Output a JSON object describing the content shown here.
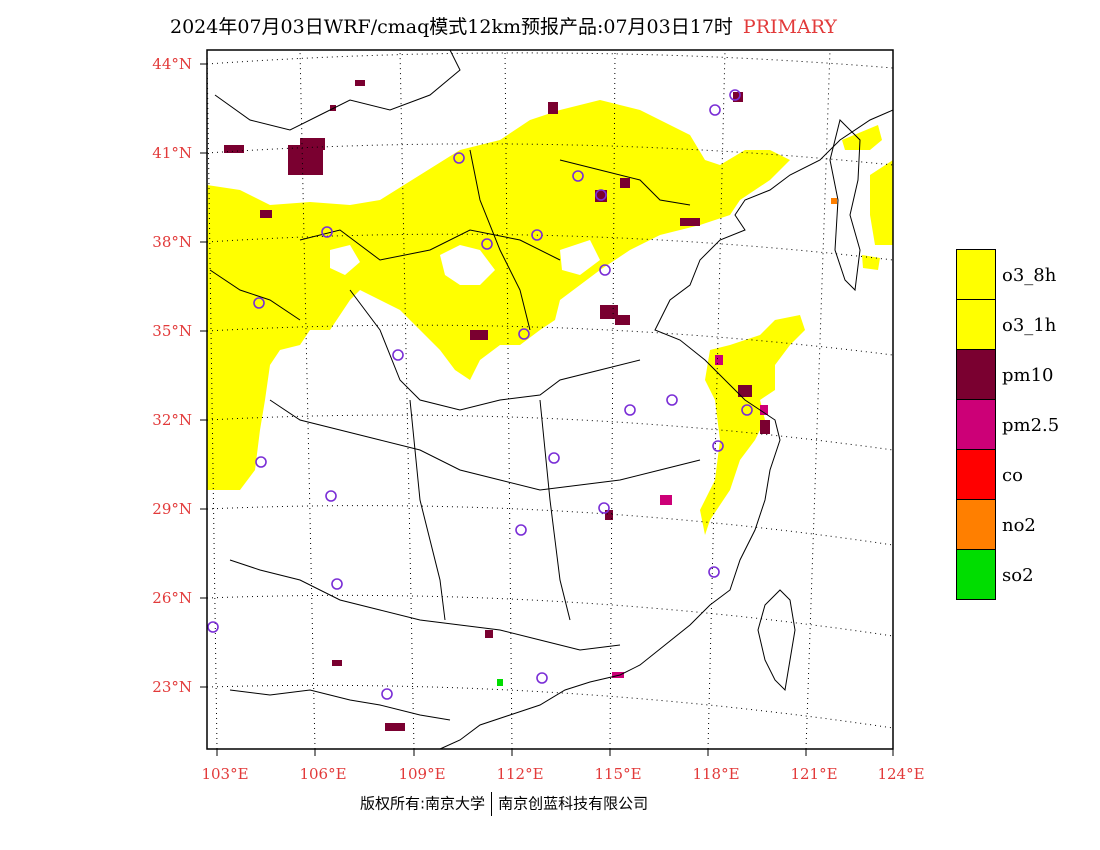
{
  "title": {
    "main": "2024年07月03日WRF/cmaq模式12km预报产品:07月03日17时",
    "tag": "PRIMARY"
  },
  "lat_labels": [
    "44°N",
    "41°N",
    "38°N",
    "35°N",
    "32°N",
    "29°N",
    "26°N",
    "23°N"
  ],
  "lon_labels": [
    "103°E",
    "106°E",
    "109°E",
    "112°E",
    "115°E",
    "118°E",
    "121°E",
    "124°E"
  ],
  "legend": [
    {
      "label": "o3_8h",
      "color": "#ffff00"
    },
    {
      "label": "o3_1h",
      "color": "#ffff00"
    },
    {
      "label": "pm10",
      "color": "#7a0030"
    },
    {
      "label": "pm2.5",
      "color": "#cc0077"
    },
    {
      "label": "co",
      "color": "#ff0000"
    },
    {
      "label": "no2",
      "color": "#ff7f00"
    },
    {
      "label": "so2",
      "color": "#00dd00"
    }
  ],
  "credit": {
    "left": "版权所有:南京大学",
    "right": "南京创蓝科技有限公司"
  },
  "colors": {
    "axis_label": "#e23a3a",
    "station_circle": "#7a2ed6",
    "ozone": "#ffff00",
    "pm10": "#7a0030",
    "pm25": "#cc0077"
  }
}
